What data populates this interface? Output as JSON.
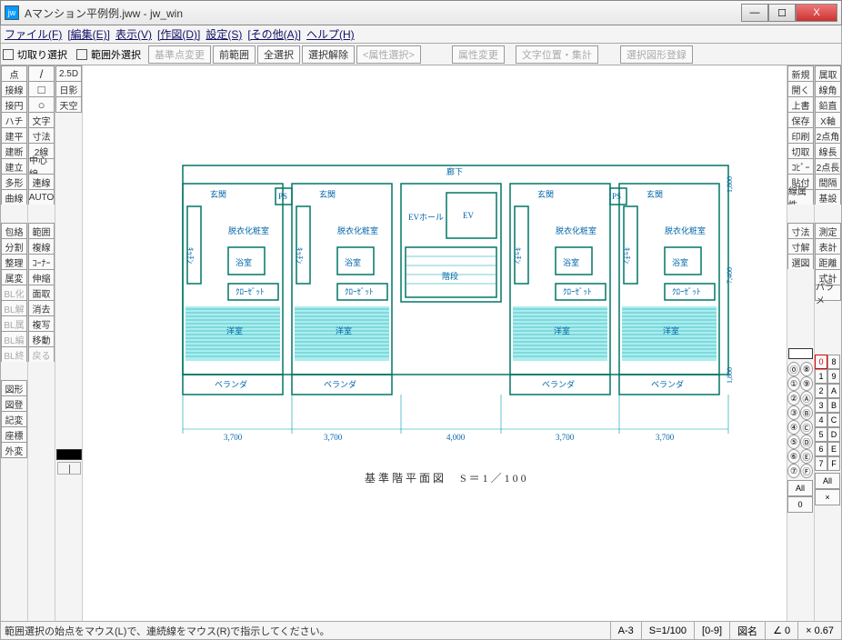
{
  "window": {
    "icon_text": "jw",
    "title": "Aマンション平例例.jww - jw_win",
    "min": "—",
    "max": "☐",
    "close": "X"
  },
  "menu": [
    "ファイル(F)",
    "[編集(E)]",
    "表示(V)",
    "[作図(D)]",
    "設定(S)",
    "[その他(A)]",
    "ヘルプ(H)"
  ],
  "toolbar": {
    "cut_sel": "切取り選択",
    "range_out": "範囲外選択",
    "btns": [
      "基準点変更",
      "前範囲",
      "全選択",
      "選択解除",
      "<属性選択>",
      "属性変更",
      "文字位置・集計",
      "選択図形登録"
    ]
  },
  "left_a": [
    "点",
    "接線",
    "接円",
    "ハチ",
    "建平",
    "建断",
    "建立",
    "多形",
    "曲線",
    "",
    "包絡",
    "分割",
    "整理",
    "属変",
    "BL化",
    "BL解",
    "BL属",
    "BL編",
    "BL終",
    "",
    "図形",
    "図登",
    "記変",
    "座標",
    "外変"
  ],
  "left_b": [
    "/",
    "□",
    "○",
    "文字",
    "寸法",
    "2線",
    "中心線",
    "連線",
    "AUTO",
    "",
    "範囲",
    "複線",
    "ｺｰﾅｰ",
    "伸縮",
    "面取",
    "消去",
    "複写",
    "移動",
    "戻る",
    "",
    "",
    "",
    "",
    "",
    ""
  ],
  "left_b_extra": "2.5D",
  "left_b_extra2": "日影",
  "left_b_extra3": "天空",
  "right_a": [
    "新規",
    "開く",
    "上書",
    "保存",
    "印刷",
    "切取",
    "ｺﾋﾟｰ",
    "貼付",
    "線属性",
    "",
    "寸法",
    "寸解",
    "選図",
    "",
    ""
  ],
  "right_b": [
    "属取",
    "線角",
    "鉛直",
    "X軸",
    "2点角",
    "線長",
    "2点長",
    "間隔",
    "基設",
    "",
    "測定",
    "表計",
    "距離",
    "式計",
    "パラメ"
  ],
  "layer_grid": [
    [
      "⓪",
      "⑧"
    ],
    [
      "①",
      "⑨"
    ],
    [
      "②",
      "Ⓐ"
    ],
    [
      "③",
      "Ⓑ"
    ],
    [
      "④",
      "Ⓒ"
    ],
    [
      "⑤",
      "Ⓓ"
    ],
    [
      "⑥",
      "Ⓔ"
    ],
    [
      "⑦",
      "Ⓕ"
    ]
  ],
  "layer_grid2": [
    [
      "0",
      "8"
    ],
    [
      "1",
      "9"
    ],
    [
      "2",
      "A"
    ],
    [
      "3",
      "B"
    ],
    [
      "4",
      "C"
    ],
    [
      "5",
      "D"
    ],
    [
      "6",
      "E"
    ],
    [
      "7",
      "F"
    ]
  ],
  "layer_all": "All",
  "layer_zero": "0",
  "layer_x": "×",
  "status": {
    "msg": "範囲選択の始点をマウス(L)で、連続線をマウス(R)で指示してください。",
    "paper": "A-3",
    "scale": "S=1/100",
    "layer": "[0-9]",
    "name": "図名",
    "angle": "∠ 0",
    "zoom": "× 0.67"
  },
  "plan": {
    "title_text": "基準階平面図　S＝1／100",
    "corridor": "廊下",
    "ev_hall": "EVホール",
    "ev": "EV",
    "stair": "階段",
    "balcony": "ベランダ",
    "genkan": "玄関",
    "dress": "脱衣化粧室",
    "bath": "浴室",
    "closet": "ｸﾛｰｾﾞｯﾄ",
    "room": "洋室",
    "kitchen": "ｷｯﾁﾝ",
    "ps": "PS",
    "dims": [
      "3,700",
      "3,700",
      "4,000",
      "3,700",
      "3,700"
    ],
    "vdim1": "1,800",
    "vdim2": "1,800",
    "vdim3": "7,400",
    "colors": {
      "line": "#087",
      "fill": "#9ed9d5",
      "text": "#0680aa"
    }
  }
}
